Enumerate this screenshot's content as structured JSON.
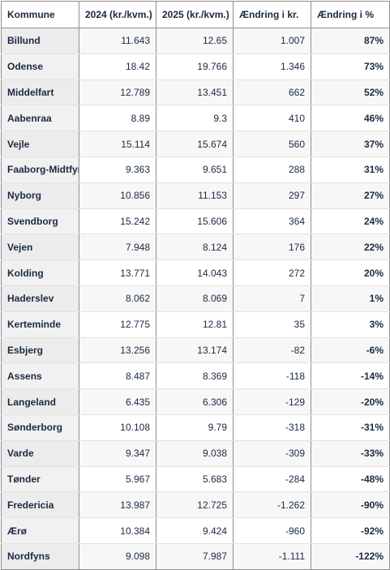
{
  "table": {
    "header": [
      "Kommune",
      "2024 (kr./kvm.)",
      "2025 (kr./kvm.)",
      "Ændring i kr.",
      "Ændring i %"
    ],
    "rows": [
      [
        "Billund",
        "11.643",
        "12.65",
        "1.007",
        "87%"
      ],
      [
        "Odense",
        "18.42",
        "19.766",
        "1.346",
        "73%"
      ],
      [
        "Middelfart",
        "12.789",
        "13.451",
        "662",
        "52%"
      ],
      [
        "Aabenraa",
        "8.89",
        "9.3",
        "410",
        "46%"
      ],
      [
        "Vejle",
        "15.114",
        "15.674",
        "560",
        "37%"
      ],
      [
        "Faaborg-Midtfyn",
        "9.363",
        "9.651",
        "288",
        "31%"
      ],
      [
        "Nyborg",
        "10.856",
        "11.153",
        "297",
        "27%"
      ],
      [
        "Svendborg",
        "15.242",
        "15.606",
        "364",
        "24%"
      ],
      [
        "Vejen",
        "7.948",
        "8.124",
        "176",
        "22%"
      ],
      [
        "Kolding",
        "13.771",
        "14.043",
        "272",
        "20%"
      ],
      [
        "Haderslev",
        "8.062",
        "8.069",
        "7",
        "1%"
      ],
      [
        "Kerteminde",
        "12.775",
        "12.81",
        "35",
        "3%"
      ],
      [
        "Esbjerg",
        "13.256",
        "13.174",
        "-82",
        "-6%"
      ],
      [
        "Assens",
        "8.487",
        "8.369",
        "-118",
        "-14%"
      ],
      [
        "Langeland",
        "6.435",
        "6.306",
        "-129",
        "-20%"
      ],
      [
        "Sønderborg",
        "10.108",
        "9.79",
        "-318",
        "-31%"
      ],
      [
        "Varde",
        "9.347",
        "9.038",
        "-309",
        "-33%"
      ],
      [
        "Tønder",
        "5.967",
        "5.683",
        "-284",
        "-48%"
      ],
      [
        "Fredericia",
        "13.987",
        "12.725",
        "-1.262",
        "-90%"
      ],
      [
        "Ærø",
        "10.384",
        "9.424",
        "-960",
        "-92%"
      ],
      [
        "Nordfyns",
        "9.098",
        "7.987",
        "-1.111",
        "-122%"
      ]
    ]
  }
}
